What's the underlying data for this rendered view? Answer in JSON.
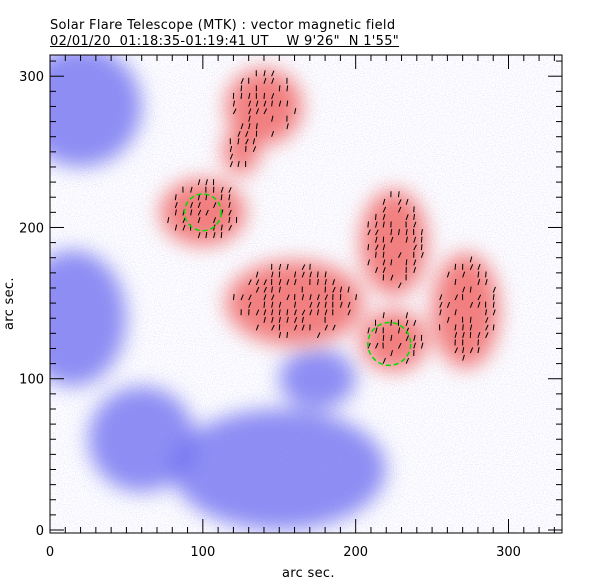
{
  "chart_data": {
    "type": "heatmap",
    "title": "Solar Flare Telescope (MTK) : vector magnetic field",
    "subtitle": "02/01/20  01:18:35-01:19:41 UT    W 9'26\"  N 1'55\"",
    "xlabel": "arc sec.",
    "ylabel": "arc sec.",
    "xlim": [
      0,
      335
    ],
    "ylim": [
      0,
      316
    ],
    "xticks": [
      0,
      100,
      200,
      300
    ],
    "yticks": [
      0,
      100,
      200,
      300
    ],
    "colors": {
      "positive": "#f06a6a",
      "negative": "#6a6af0"
    },
    "positive_regions": [
      [
        100,
        210,
        28,
        22
      ],
      [
        160,
        150,
        45,
        28
      ],
      [
        225,
        125,
        22,
        20
      ],
      [
        225,
        190,
        22,
        35
      ],
      [
        272,
        145,
        22,
        38
      ],
      [
        140,
        280,
        25,
        25
      ],
      [
        125,
        250,
        12,
        15
      ]
    ],
    "negative_regions": [
      [
        20,
        280,
        40,
        40
      ],
      [
        15,
        140,
        35,
        45
      ],
      [
        150,
        40,
        70,
        40
      ],
      [
        60,
        60,
        35,
        35
      ],
      [
        175,
        100,
        25,
        20
      ]
    ],
    "circles": [
      [
        100,
        210,
        12
      ],
      [
        222,
        123,
        14
      ]
    ],
    "vectors": []
  }
}
